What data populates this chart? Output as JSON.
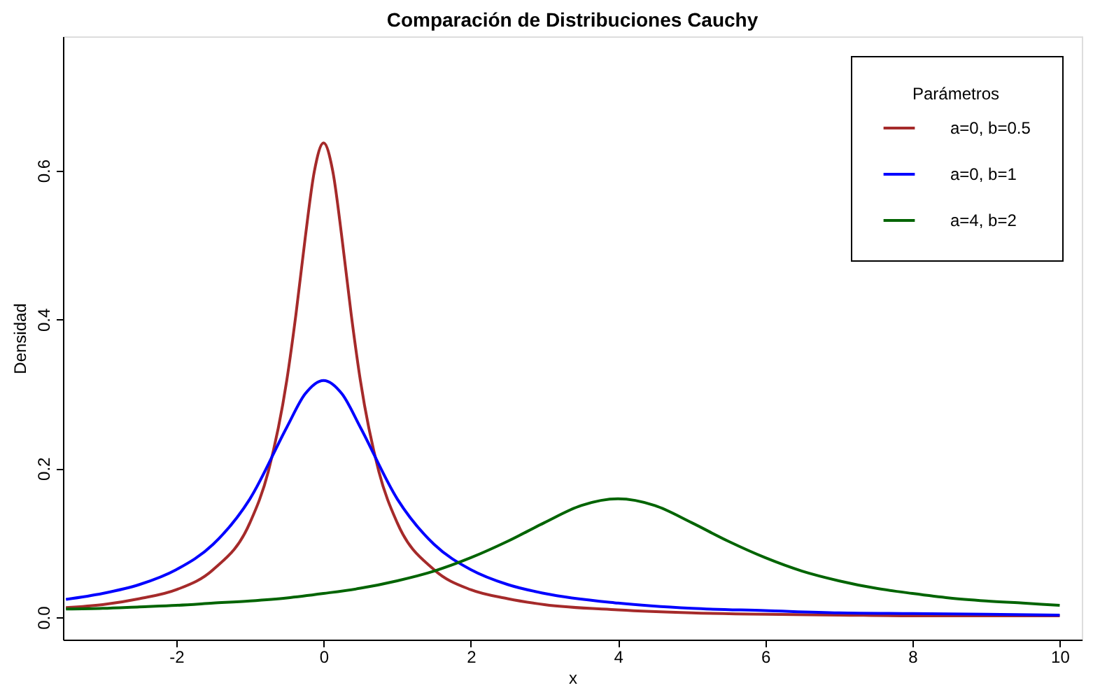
{
  "chart_data": {
    "type": "line",
    "title": "Comparación de Distribuciones Cauchy",
    "xlabel": "x",
    "ylabel": "Densidad",
    "legend_title": "Parámetros",
    "xlim": [
      -3.54,
      10.3
    ],
    "xticks": [
      -2,
      0,
      2,
      4,
      6,
      8,
      10
    ],
    "ylim": [
      -0.03,
      0.78
    ],
    "yticks": [
      {
        "value": 0,
        "label": "0.0"
      },
      {
        "value": 0.2,
        "label": "0.2"
      },
      {
        "value": 0.4,
        "label": "0.4"
      },
      {
        "value": 0.6,
        "label": "0.6"
      }
    ],
    "grid": false,
    "legend": "top right",
    "marker": "none",
    "line_style": "solid",
    "series": [
      {
        "name": "a=0, b=0.5",
        "color": "#a52a2a",
        "x": [
          -3.5,
          -3,
          -2.5,
          -2,
          -1.5,
          -1,
          -0.75,
          -0.5,
          -0.375,
          -0.25,
          -0.125,
          0,
          0.125,
          0.25,
          0.375,
          0.5,
          0.75,
          1,
          1.5,
          2,
          2.5,
          3,
          4,
          5,
          6,
          7,
          8,
          9,
          10
        ],
        "values": [
          0.013,
          0.017,
          0.025,
          0.037,
          0.064,
          0.127,
          0.196,
          0.318,
          0.407,
          0.509,
          0.599,
          0.637,
          0.599,
          0.509,
          0.407,
          0.318,
          0.196,
          0.127,
          0.064,
          0.037,
          0.025,
          0.017,
          0.01,
          0.006,
          0.004,
          0.003,
          0.002,
          0.002,
          0.002
        ]
      },
      {
        "name": "a=0, b=1",
        "color": "#0000ff",
        "x": [
          -3.5,
          -3,
          -2.5,
          -2,
          -1.5,
          -1,
          -0.5,
          -0.25,
          0,
          0.25,
          0.5,
          1,
          1.5,
          2,
          2.5,
          3,
          4,
          5,
          6,
          7,
          8,
          9,
          10
        ],
        "values": [
          0.024,
          0.032,
          0.044,
          0.064,
          0.098,
          0.159,
          0.255,
          0.3,
          0.318,
          0.3,
          0.255,
          0.159,
          0.098,
          0.064,
          0.044,
          0.032,
          0.019,
          0.012,
          0.009,
          0.006,
          0.005,
          0.004,
          0.003
        ]
      },
      {
        "name": "a=4, b=2",
        "color": "#006400",
        "x": [
          -3.5,
          -3,
          -2.5,
          -2,
          -1.5,
          -1,
          -0.5,
          0,
          0.5,
          1,
          1.5,
          2,
          2.5,
          3,
          3.5,
          4,
          4.5,
          5,
          5.5,
          6,
          6.5,
          7,
          7.5,
          8,
          8.5,
          9,
          9.5,
          10
        ],
        "values": [
          0.011,
          0.012,
          0.014,
          0.016,
          0.019,
          0.022,
          0.026,
          0.032,
          0.039,
          0.049,
          0.062,
          0.08,
          0.102,
          0.127,
          0.15,
          0.159,
          0.15,
          0.127,
          0.102,
          0.08,
          0.062,
          0.049,
          0.039,
          0.032,
          0.026,
          0.022,
          0.019,
          0.016
        ]
      }
    ]
  }
}
